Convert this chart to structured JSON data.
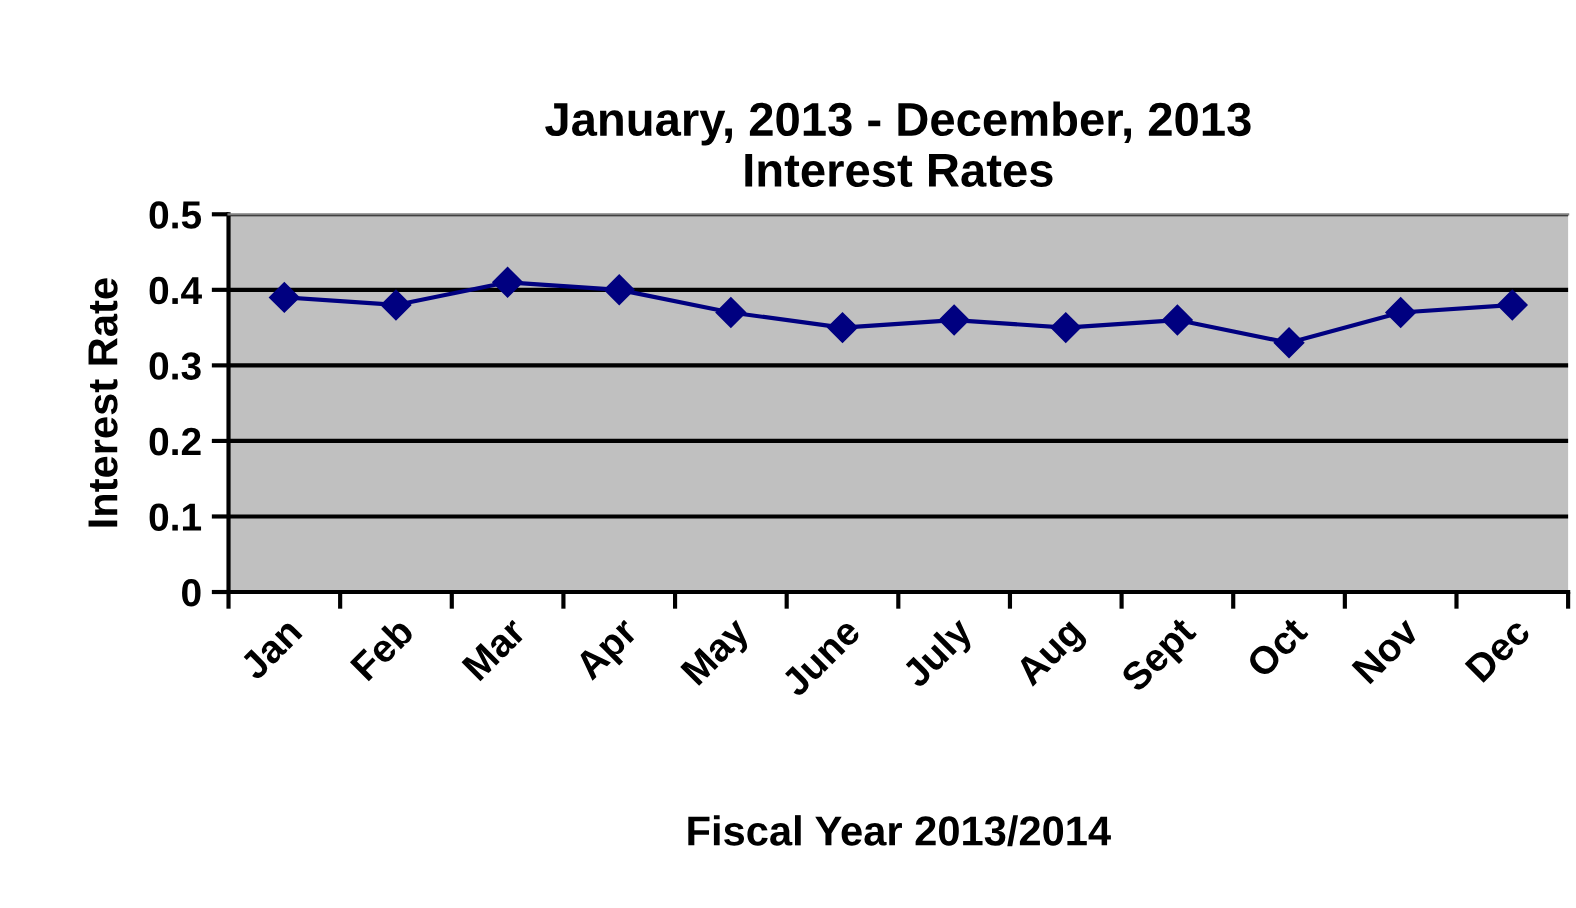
{
  "chart_data": {
    "type": "line",
    "title": "January, 2013 - December, 2013\nInterest Rates",
    "xlabel": "Fiscal Year 2013/2014",
    "ylabel": "Interest Rate",
    "categories": [
      "Jan",
      "Feb",
      "Mar",
      "Apr",
      "May",
      "June",
      "July",
      "Aug",
      "Sept",
      "Oct",
      "Nov",
      "Dec"
    ],
    "series": [
      {
        "color": "#000080",
        "values": [
          0.39,
          0.38,
          0.41,
          0.4,
          0.37,
          0.35,
          0.36,
          0.35,
          0.36,
          0.33,
          0.37,
          0.38
        ]
      }
    ],
    "ylim": [
      0,
      0.5
    ],
    "yticks": [
      {
        "value": 0,
        "label": "0"
      },
      0.1,
      0.2,
      0.3,
      0.4,
      0.5
    ],
    "grid": "y",
    "marker": "diamond",
    "line_style": "solid",
    "legend": false
  }
}
